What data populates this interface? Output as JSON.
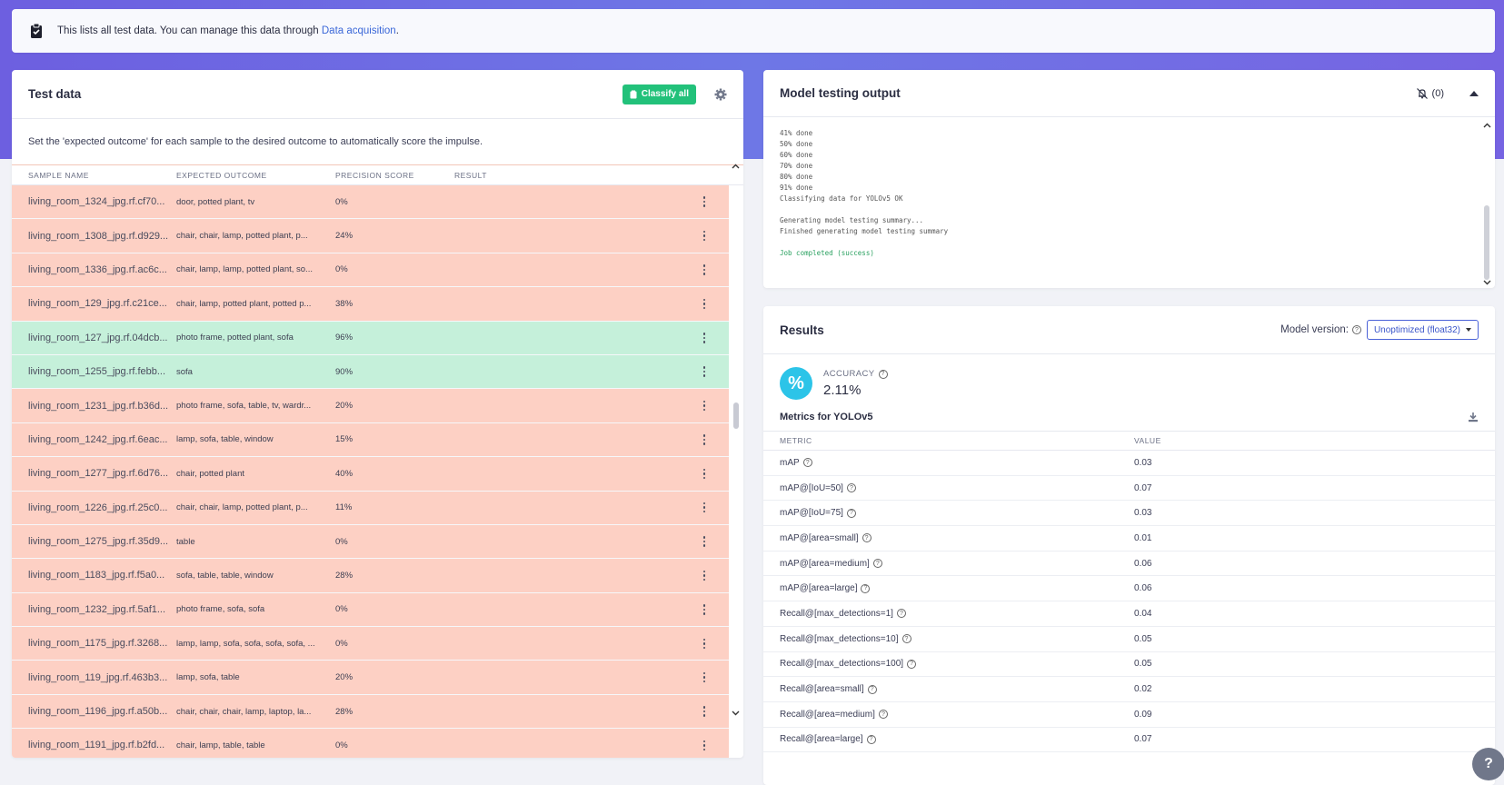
{
  "banner": {
    "text": "This lists all test data. You can manage this data through ",
    "link": "Data acquisition",
    "suffix": "."
  },
  "test_data": {
    "title": "Test data",
    "classify_label": "Classify all",
    "description": "Set the 'expected outcome' for each sample to the desired outcome to automatically score the impulse.",
    "columns": [
      "SAMPLE NAME",
      "EXPECTED OUTCOME",
      "PRECISION SCORE",
      "RESULT"
    ],
    "rows": [
      {
        "name": "living_room_1324_jpg.rf.cf70...",
        "expected": "door, potted plant, tv",
        "precision": "0%",
        "status": "bad"
      },
      {
        "name": "living_room_1308_jpg.rf.d929...",
        "expected": "chair, chair, lamp, potted plant, p...",
        "precision": "24%",
        "status": "bad"
      },
      {
        "name": "living_room_1336_jpg.rf.ac6c...",
        "expected": "chair, lamp, lamp, potted plant, so...",
        "precision": "0%",
        "status": "bad"
      },
      {
        "name": "living_room_129_jpg.rf.c21ce...",
        "expected": "chair, lamp, potted plant, potted p...",
        "precision": "38%",
        "status": "bad"
      },
      {
        "name": "living_room_127_jpg.rf.04dcb...",
        "expected": "photo frame, potted plant, sofa",
        "precision": "96%",
        "status": "good"
      },
      {
        "name": "living_room_1255_jpg.rf.febb...",
        "expected": "sofa",
        "precision": "90%",
        "status": "good"
      },
      {
        "name": "living_room_1231_jpg.rf.b36d...",
        "expected": "photo frame, sofa, table, tv, wardr...",
        "precision": "20%",
        "status": "bad"
      },
      {
        "name": "living_room_1242_jpg.rf.6eac...",
        "expected": "lamp, sofa, table, window",
        "precision": "15%",
        "status": "bad"
      },
      {
        "name": "living_room_1277_jpg.rf.6d76...",
        "expected": "chair, potted plant",
        "precision": "40%",
        "status": "bad"
      },
      {
        "name": "living_room_1226_jpg.rf.25c0...",
        "expected": "chair, chair, lamp, potted plant, p...",
        "precision": "11%",
        "status": "bad"
      },
      {
        "name": "living_room_1275_jpg.rf.35d9...",
        "expected": "table",
        "precision": "0%",
        "status": "bad"
      },
      {
        "name": "living_room_1183_jpg.rf.f5a0...",
        "expected": "sofa, table, table, window",
        "precision": "28%",
        "status": "bad"
      },
      {
        "name": "living_room_1232_jpg.rf.5af1...",
        "expected": "photo frame, sofa, sofa",
        "precision": "0%",
        "status": "bad"
      },
      {
        "name": "living_room_1175_jpg.rf.3268...",
        "expected": "lamp, lamp, sofa, sofa, sofa, sofa, ...",
        "precision": "0%",
        "status": "bad"
      },
      {
        "name": "living_room_119_jpg.rf.463b3...",
        "expected": "lamp, sofa, table",
        "precision": "20%",
        "status": "bad"
      },
      {
        "name": "living_room_1196_jpg.rf.a50b...",
        "expected": "chair, chair, chair, lamp, laptop, la...",
        "precision": "28%",
        "status": "bad"
      },
      {
        "name": "living_room_1191_jpg.rf.b2fd...",
        "expected": "chair, lamp, table, table",
        "precision": "0%",
        "status": "bad"
      }
    ]
  },
  "output": {
    "title": "Model testing output",
    "mute_count": "(0)",
    "log_lines": [
      "41% done",
      "50% done",
      "60% done",
      "70% done",
      "80% done",
      "91% done",
      "Classifying data for YOLOv5 OK",
      "",
      "Generating model testing summary...",
      "Finished generating model testing summary",
      ""
    ],
    "success_line": "Job completed (success)"
  },
  "results": {
    "title": "Results",
    "model_version_label": "Model version:",
    "model_version_value": "Unoptimized (float32)",
    "accuracy_label": "ACCURACY",
    "accuracy_value": "2.11%",
    "metrics_title": "Metrics for YOLOv5",
    "metric_col": "METRIC",
    "value_col": "VALUE",
    "metrics": [
      {
        "name": "mAP",
        "value": "0.03"
      },
      {
        "name": "mAP@[IoU=50]",
        "value": "0.07"
      },
      {
        "name": "mAP@[IoU=75]",
        "value": "0.03"
      },
      {
        "name": "mAP@[area=small]",
        "value": "0.01"
      },
      {
        "name": "mAP@[area=medium]",
        "value": "0.06"
      },
      {
        "name": "mAP@[area=large]",
        "value": "0.06"
      },
      {
        "name": "Recall@[max_detections=1]",
        "value": "0.04"
      },
      {
        "name": "Recall@[max_detections=10]",
        "value": "0.05"
      },
      {
        "name": "Recall@[max_detections=100]",
        "value": "0.05"
      },
      {
        "name": "Recall@[area=small]",
        "value": "0.02"
      },
      {
        "name": "Recall@[area=medium]",
        "value": "0.09"
      },
      {
        "name": "Recall@[area=large]",
        "value": "0.07"
      }
    ]
  },
  "icons": {
    "clipboard": "clipboard-check-icon",
    "classify": "clipboard-icon",
    "settings": "gear-icon",
    "mute": "bell-slash-icon",
    "collapse": "caret-up-icon",
    "download": "download-icon",
    "help": "question-icon"
  },
  "colors": {
    "accent_green": "#22c17a",
    "row_bad": "#fdd0c4",
    "row_good": "#c5f0da",
    "accuracy_circle": "#2cc4e8",
    "link": "#3a67d8"
  }
}
